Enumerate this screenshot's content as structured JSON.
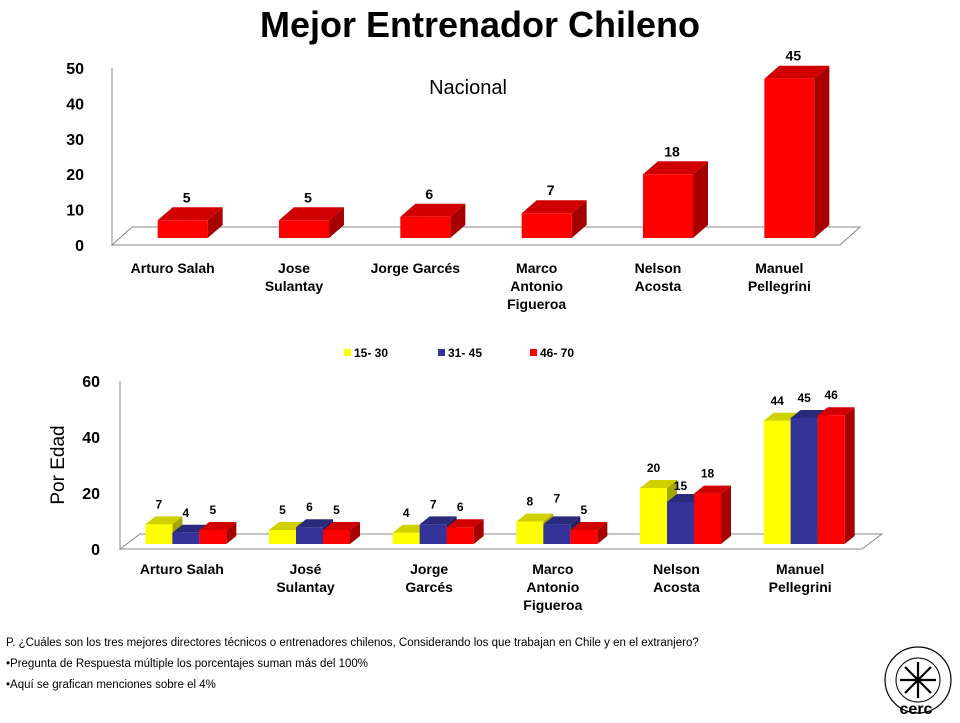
{
  "title": "Mejor Entrenador Chileno",
  "chart_data": [
    {
      "type": "bar",
      "subtitle": "Nacional",
      "categories": [
        "Arturo Salah",
        "Jose Sulantay",
        "Jorge Garcés",
        "Marco Antonio Figueroa",
        "Nelson Acosta",
        "Manuel Pellegrini"
      ],
      "category_lines": [
        [
          "Arturo Salah"
        ],
        [
          "Jose",
          "Sulantay"
        ],
        [
          "Jorge Garcés"
        ],
        [
          "Marco",
          "Antonio",
          "Figueroa"
        ],
        [
          "Nelson",
          "Acosta"
        ],
        [
          "Manuel",
          "Pellegrini"
        ]
      ],
      "values": [
        5,
        5,
        6,
        7,
        18,
        45
      ],
      "ylim": [
        0,
        50
      ],
      "yticks": [
        0,
        10,
        20,
        30,
        40,
        50
      ],
      "color": "#ff0000",
      "grid": false
    },
    {
      "type": "bar",
      "ylabel": "Por Edad",
      "categories": [
        "Arturo Salah",
        "José Sulantay",
        "Jorge Garcés",
        "Marco Antonio Figueroa",
        "Nelson Acosta",
        "Manuel Pellegrini"
      ],
      "category_lines": [
        [
          "Arturo Salah"
        ],
        [
          "José",
          "Sulantay"
        ],
        [
          "Jorge",
          "Garcés"
        ],
        [
          "Marco",
          "Antonio",
          "Figueroa"
        ],
        [
          "Nelson",
          "Acosta"
        ],
        [
          "Manuel",
          "Pellegrini"
        ]
      ],
      "series": [
        {
          "name": "15- 30",
          "color": "#ffff00",
          "values": [
            7,
            5,
            4,
            8,
            20,
            44
          ]
        },
        {
          "name": "31- 45",
          "color": "#333399",
          "values": [
            4,
            6,
            7,
            7,
            15,
            45
          ]
        },
        {
          "name": "46- 70",
          "color": "#ff0000",
          "values": [
            5,
            5,
            6,
            5,
            18,
            46
          ]
        }
      ],
      "ylim": [
        0,
        60
      ],
      "yticks": [
        0,
        20,
        40,
        60
      ],
      "legend_position": "top",
      "grid": false
    }
  ],
  "footer": {
    "question": "P. ¿Cuáles son los tres mejores directores técnicos o entrenadores chilenos, Considerando los que trabajan en Chile y en el extranjero?",
    "note1": "•Pregunta de Respuesta múltiple los porcentajes suman más del 100%",
    "note2": "•Aquí se grafican menciones sobre el 4%"
  },
  "logo": {
    "ring_text": "24 años de encuestas · 1986 · 2010",
    "name": "cerc"
  }
}
